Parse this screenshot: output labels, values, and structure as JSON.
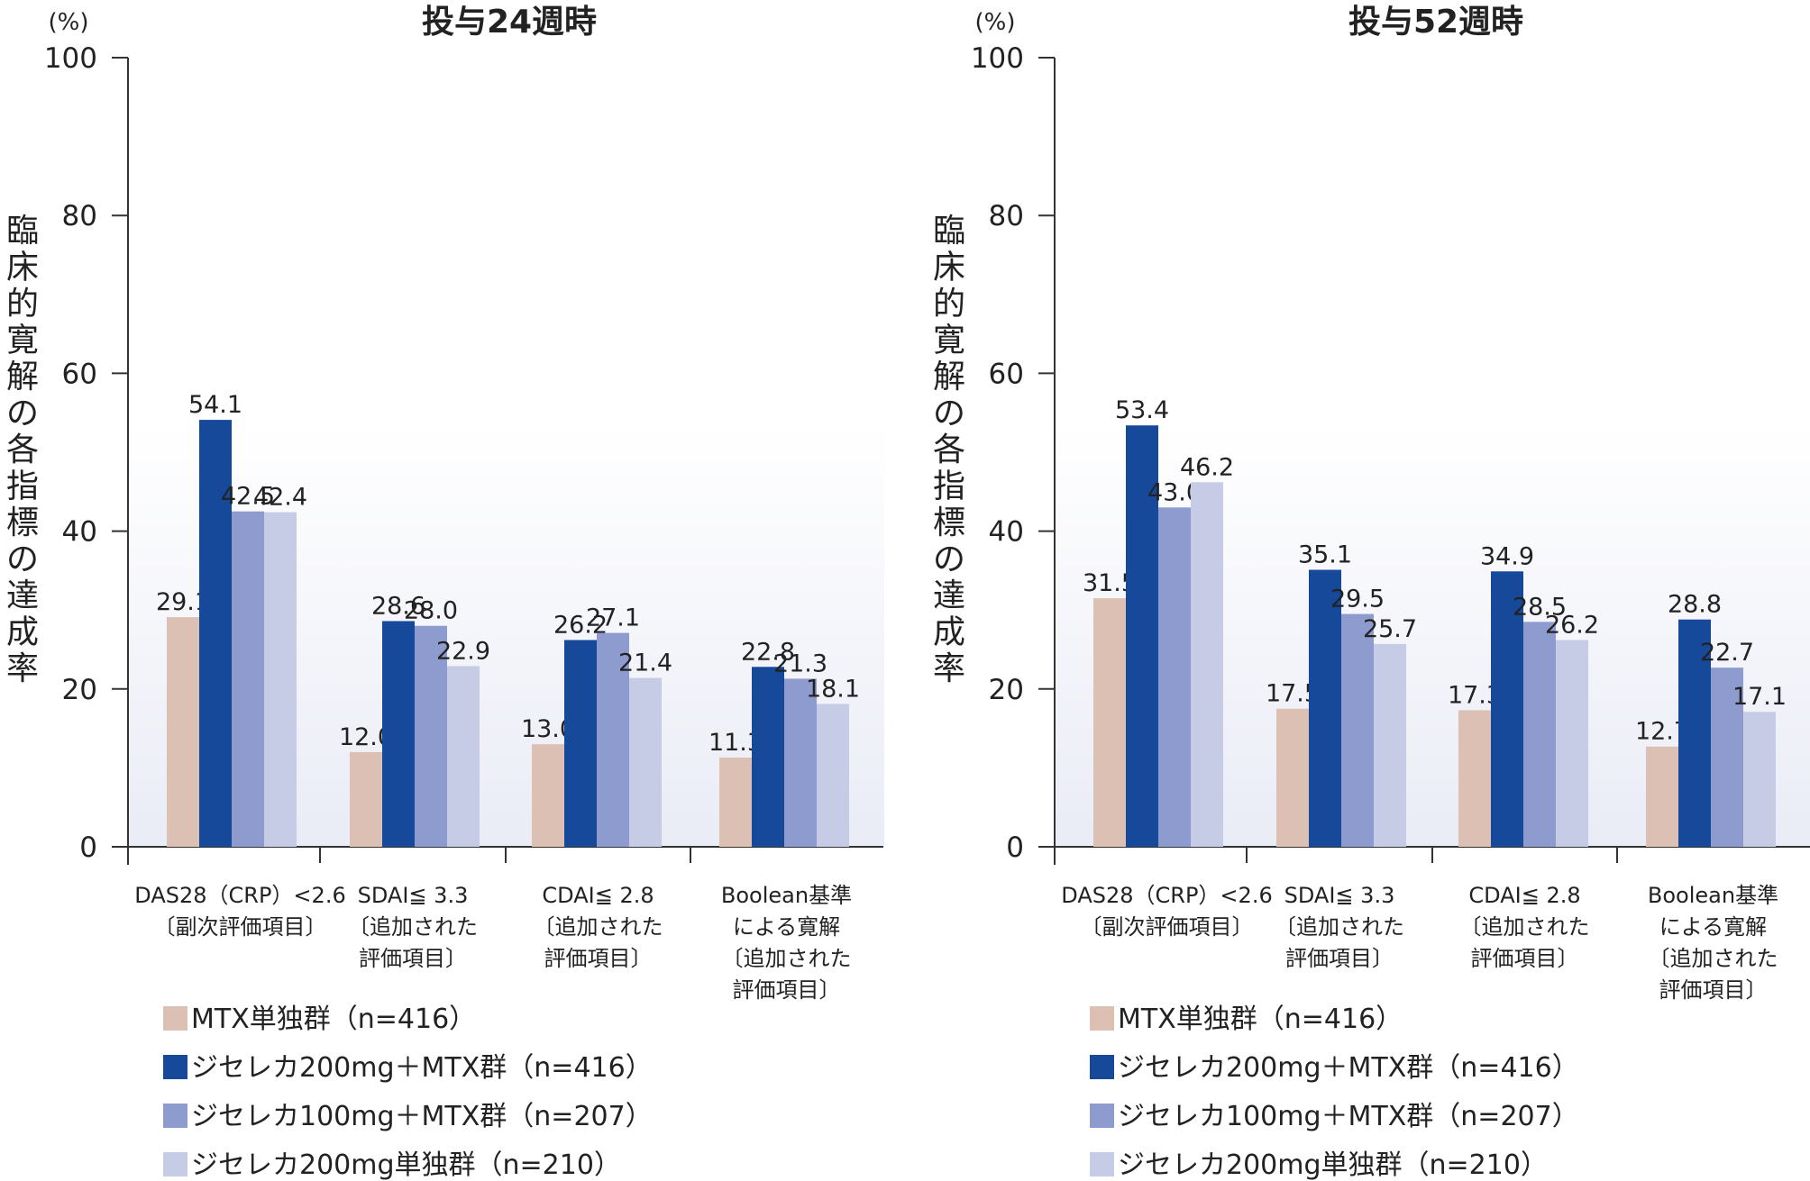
{
  "legend_colors": [
    "#dcc0b3",
    "#17499a",
    "#8d9bcf",
    "#c6cce6"
  ],
  "chart_data": [
    {
      "type": "bar",
      "title": "投与24週時",
      "y_unit": "(%)",
      "ylabel": "臨床的寛解の各指標の達成率",
      "ylim": [
        0,
        100
      ],
      "yticks": [
        0,
        20,
        40,
        60,
        80,
        100
      ],
      "categories": [
        [
          "DAS28（CRP）<2.6",
          "〔副次評価項目〕"
        ],
        [
          "SDAI≦ 3.3",
          "〔追加された",
          "評価項目〕"
        ],
        [
          "CDAI≦ 2.8",
          "〔追加された",
          "評価項目〕"
        ],
        [
          "Boolean基準",
          "による寛解",
          "〔追加された",
          "評価項目〕"
        ]
      ],
      "series": [
        {
          "name": "MTX単独群（n=416）",
          "values": [
            "29.1",
            "12.0",
            "13.0",
            "11.3"
          ]
        },
        {
          "name": "ジセレカ200mg＋MTX群（n=416）",
          "values": [
            "54.1",
            "28.6",
            "26.2",
            "22.8"
          ]
        },
        {
          "name": "ジセレカ100mg＋MTX群（n=207）",
          "values": [
            "42.5",
            "28.0",
            "27.1",
            "21.3"
          ]
        },
        {
          "name": "ジセレカ200mg単独群（n=210）",
          "values": [
            "42.4",
            "22.9",
            "21.4",
            "18.1"
          ]
        }
      ],
      "grid": false,
      "legend_position": "bottom-left"
    },
    {
      "type": "bar",
      "title": "投与52週時",
      "y_unit": "(%)",
      "ylabel": "臨床的寛解の各指標の達成率",
      "ylim": [
        0,
        100
      ],
      "yticks": [
        0,
        20,
        40,
        60,
        80,
        100
      ],
      "categories": [
        [
          "DAS28（CRP）<2.6",
          "〔副次評価項目〕"
        ],
        [
          "SDAI≦ 3.3",
          "〔追加された",
          "評価項目〕"
        ],
        [
          "CDAI≦ 2.8",
          "〔追加された",
          "評価項目〕"
        ],
        [
          "Boolean基準",
          "による寛解",
          "〔追加された",
          "評価項目〕"
        ]
      ],
      "series": [
        {
          "name": "MTX単独群（n=416）",
          "values": [
            "31.5",
            "17.5",
            "17.3",
            "12.7"
          ]
        },
        {
          "name": "ジセレカ200mg＋MTX群（n=416）",
          "values": [
            "53.4",
            "35.1",
            "34.9",
            "28.8"
          ]
        },
        {
          "name": "ジセレカ100mg＋MTX群（n=207）",
          "values": [
            "43.0",
            "29.5",
            "28.5",
            "22.7"
          ]
        },
        {
          "name": "ジセレカ200mg単独群（n=210）",
          "values": [
            "46.2",
            "25.7",
            "26.2",
            "17.1"
          ]
        }
      ],
      "grid": false,
      "legend_position": "bottom-left"
    }
  ]
}
